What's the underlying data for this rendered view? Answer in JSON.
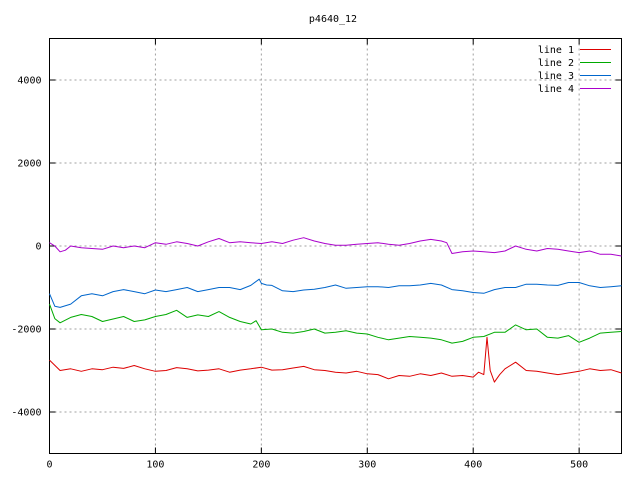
{
  "chart_data": {
    "type": "line",
    "title": "p4640_12",
    "xlabel": "",
    "ylabel": "",
    "xlim": [
      0,
      540
    ],
    "ylim": [
      -5000,
      5000
    ],
    "xticks": [
      0,
      100,
      200,
      300,
      400,
      500
    ],
    "yticks": [
      -4000,
      -2000,
      0,
      2000,
      4000
    ],
    "ytick_labels_shown": [
      "-4000",
      "-2000",
      "0",
      "2000",
      "4000"
    ],
    "grid": true,
    "legend_position": "top-right",
    "series": [
      {
        "name": "line 1",
        "color": "#dd0000",
        "points": [
          [
            0,
            -2750
          ],
          [
            10,
            -3000
          ],
          [
            20,
            -2960
          ],
          [
            30,
            -3020
          ],
          [
            40,
            -2960
          ],
          [
            50,
            -2980
          ],
          [
            60,
            -2920
          ],
          [
            70,
            -2950
          ],
          [
            80,
            -2880
          ],
          [
            90,
            -2960
          ],
          [
            100,
            -3020
          ],
          [
            110,
            -3000
          ],
          [
            120,
            -2930
          ],
          [
            130,
            -2960
          ],
          [
            140,
            -3010
          ],
          [
            150,
            -2990
          ],
          [
            160,
            -2960
          ],
          [
            170,
            -3040
          ],
          [
            180,
            -2990
          ],
          [
            190,
            -2960
          ],
          [
            200,
            -2920
          ],
          [
            210,
            -2990
          ],
          [
            220,
            -2980
          ],
          [
            230,
            -2940
          ],
          [
            240,
            -2900
          ],
          [
            250,
            -2980
          ],
          [
            260,
            -3000
          ],
          [
            270,
            -3040
          ],
          [
            280,
            -3060
          ],
          [
            290,
            -3020
          ],
          [
            300,
            -3080
          ],
          [
            310,
            -3100
          ],
          [
            320,
            -3200
          ],
          [
            330,
            -3120
          ],
          [
            340,
            -3140
          ],
          [
            350,
            -3080
          ],
          [
            360,
            -3120
          ],
          [
            370,
            -3060
          ],
          [
            380,
            -3140
          ],
          [
            390,
            -3120
          ],
          [
            400,
            -3160
          ],
          [
            405,
            -3040
          ],
          [
            410,
            -3100
          ],
          [
            413,
            -2200
          ],
          [
            416,
            -3000
          ],
          [
            420,
            -3280
          ],
          [
            425,
            -3100
          ],
          [
            430,
            -2960
          ],
          [
            440,
            -2800
          ],
          [
            450,
            -3000
          ],
          [
            460,
            -3020
          ],
          [
            470,
            -3060
          ],
          [
            480,
            -3100
          ],
          [
            490,
            -3060
          ],
          [
            500,
            -3020
          ],
          [
            510,
            -2960
          ],
          [
            520,
            -3000
          ],
          [
            530,
            -2980
          ],
          [
            540,
            -3060
          ]
        ]
      },
      {
        "name": "line 2",
        "color": "#00aa00",
        "points": [
          [
            0,
            -1400
          ],
          [
            5,
            -1750
          ],
          [
            10,
            -1850
          ],
          [
            20,
            -1720
          ],
          [
            30,
            -1650
          ],
          [
            40,
            -1700
          ],
          [
            50,
            -1820
          ],
          [
            60,
            -1760
          ],
          [
            70,
            -1700
          ],
          [
            80,
            -1820
          ],
          [
            90,
            -1780
          ],
          [
            100,
            -1700
          ],
          [
            110,
            -1650
          ],
          [
            120,
            -1550
          ],
          [
            130,
            -1720
          ],
          [
            140,
            -1660
          ],
          [
            150,
            -1700
          ],
          [
            160,
            -1580
          ],
          [
            170,
            -1720
          ],
          [
            180,
            -1820
          ],
          [
            190,
            -1880
          ],
          [
            195,
            -1800
          ],
          [
            200,
            -2020
          ],
          [
            210,
            -2000
          ],
          [
            220,
            -2080
          ],
          [
            230,
            -2100
          ],
          [
            240,
            -2060
          ],
          [
            250,
            -2000
          ],
          [
            260,
            -2100
          ],
          [
            270,
            -2080
          ],
          [
            280,
            -2040
          ],
          [
            290,
            -2100
          ],
          [
            300,
            -2120
          ],
          [
            310,
            -2200
          ],
          [
            320,
            -2260
          ],
          [
            330,
            -2220
          ],
          [
            340,
            -2180
          ],
          [
            350,
            -2200
          ],
          [
            360,
            -2220
          ],
          [
            370,
            -2260
          ],
          [
            380,
            -2340
          ],
          [
            390,
            -2300
          ],
          [
            400,
            -2200
          ],
          [
            410,
            -2180
          ],
          [
            420,
            -2080
          ],
          [
            430,
            -2080
          ],
          [
            440,
            -1900
          ],
          [
            450,
            -2020
          ],
          [
            460,
            -2000
          ],
          [
            470,
            -2200
          ],
          [
            480,
            -2220
          ],
          [
            490,
            -2160
          ],
          [
            500,
            -2320
          ],
          [
            510,
            -2220
          ],
          [
            520,
            -2100
          ],
          [
            530,
            -2080
          ],
          [
            540,
            -2060
          ]
        ]
      },
      {
        "name": "line 3",
        "color": "#0066cc",
        "points": [
          [
            0,
            -1150
          ],
          [
            5,
            -1450
          ],
          [
            10,
            -1480
          ],
          [
            20,
            -1400
          ],
          [
            30,
            -1200
          ],
          [
            40,
            -1150
          ],
          [
            50,
            -1200
          ],
          [
            60,
            -1100
          ],
          [
            70,
            -1050
          ],
          [
            80,
            -1100
          ],
          [
            90,
            -1150
          ],
          [
            100,
            -1060
          ],
          [
            110,
            -1100
          ],
          [
            120,
            -1050
          ],
          [
            130,
            -1000
          ],
          [
            140,
            -1100
          ],
          [
            150,
            -1050
          ],
          [
            160,
            -1000
          ],
          [
            170,
            -1000
          ],
          [
            180,
            -1050
          ],
          [
            190,
            -950
          ],
          [
            198,
            -800
          ],
          [
            200,
            -900
          ],
          [
            205,
            -940
          ],
          [
            210,
            -950
          ],
          [
            220,
            -1080
          ],
          [
            230,
            -1100
          ],
          [
            240,
            -1060
          ],
          [
            250,
            -1040
          ],
          [
            260,
            -1000
          ],
          [
            270,
            -940
          ],
          [
            280,
            -1020
          ],
          [
            290,
            -1000
          ],
          [
            300,
            -980
          ],
          [
            310,
            -980
          ],
          [
            320,
            -1000
          ],
          [
            330,
            -960
          ],
          [
            340,
            -960
          ],
          [
            350,
            -940
          ],
          [
            360,
            -900
          ],
          [
            370,
            -940
          ],
          [
            380,
            -1050
          ],
          [
            390,
            -1080
          ],
          [
            400,
            -1120
          ],
          [
            410,
            -1140
          ],
          [
            420,
            -1050
          ],
          [
            430,
            -1000
          ],
          [
            440,
            -1000
          ],
          [
            450,
            -920
          ],
          [
            460,
            -920
          ],
          [
            470,
            -940
          ],
          [
            480,
            -950
          ],
          [
            490,
            -880
          ],
          [
            500,
            -880
          ],
          [
            510,
            -960
          ],
          [
            520,
            -1000
          ],
          [
            530,
            -980
          ],
          [
            540,
            -960
          ]
        ]
      },
      {
        "name": "line 4",
        "color": "#aa00cc",
        "points": [
          [
            0,
            80
          ],
          [
            5,
            0
          ],
          [
            10,
            -140
          ],
          [
            15,
            -100
          ],
          [
            20,
            0
          ],
          [
            30,
            -40
          ],
          [
            40,
            -60
          ],
          [
            50,
            -80
          ],
          [
            60,
            0
          ],
          [
            70,
            -40
          ],
          [
            80,
            0
          ],
          [
            90,
            -40
          ],
          [
            100,
            80
          ],
          [
            110,
            40
          ],
          [
            120,
            100
          ],
          [
            130,
            60
          ],
          [
            140,
            0
          ],
          [
            150,
            100
          ],
          [
            160,
            180
          ],
          [
            170,
            80
          ],
          [
            180,
            100
          ],
          [
            190,
            80
          ],
          [
            200,
            60
          ],
          [
            210,
            100
          ],
          [
            220,
            60
          ],
          [
            230,
            140
          ],
          [
            240,
            200
          ],
          [
            250,
            120
          ],
          [
            260,
            60
          ],
          [
            270,
            20
          ],
          [
            280,
            20
          ],
          [
            290,
            40
          ],
          [
            300,
            60
          ],
          [
            310,
            80
          ],
          [
            320,
            40
          ],
          [
            330,
            20
          ],
          [
            340,
            60
          ],
          [
            350,
            120
          ],
          [
            360,
            160
          ],
          [
            370,
            120
          ],
          [
            375,
            80
          ],
          [
            380,
            -180
          ],
          [
            390,
            -140
          ],
          [
            400,
            -120
          ],
          [
            410,
            -140
          ],
          [
            420,
            -160
          ],
          [
            430,
            -120
          ],
          [
            440,
            0
          ],
          [
            450,
            -80
          ],
          [
            460,
            -120
          ],
          [
            470,
            -60
          ],
          [
            480,
            -80
          ],
          [
            490,
            -120
          ],
          [
            500,
            -160
          ],
          [
            510,
            -120
          ],
          [
            520,
            -200
          ],
          [
            530,
            -200
          ],
          [
            540,
            -240
          ]
        ]
      }
    ]
  }
}
